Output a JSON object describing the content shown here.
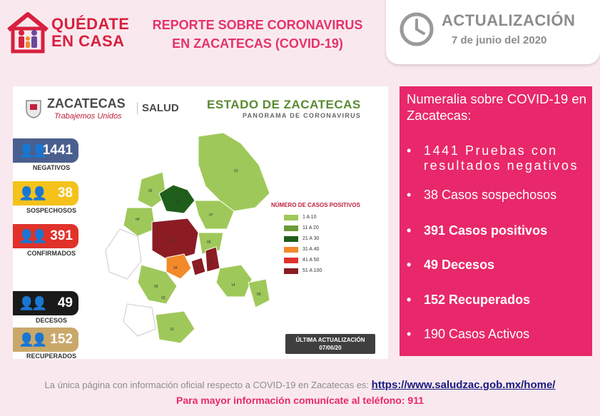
{
  "header": {
    "brand_line1": "QUÉDATE",
    "brand_line2": "EN CASA",
    "report_line1": "REPORTE SOBRE CORONAVIRUS",
    "report_line2": "EN ZACATECAS  (COVID-19)",
    "update_title": "ACTUALIZACIÓN",
    "update_date": "7 de junio del 2020"
  },
  "infographic": {
    "logo_name": "ZACATECAS",
    "logo_tagline": "Trabajemos Unidos",
    "logo_salud": "SALUD",
    "title": "ESTADO DE ZACATECAS",
    "subtitle": "PANORAMA DE CORONAVIRUS",
    "stats": [
      {
        "value": "1441",
        "label": "NEGATIVOS",
        "color": "#4a5f8e"
      },
      {
        "value": "38",
        "label": "SOSPECHOSOS",
        "color": "#f4c21b"
      },
      {
        "value": "391",
        "label": "CONFIRMADOS",
        "color": "#e0322b"
      },
      {
        "value": "49",
        "label": "DECESOS",
        "color": "#1a1a1a"
      },
      {
        "value": "152",
        "label": "RECUPERADOS",
        "color": "#c9a86a"
      }
    ],
    "legend_title": "NÚMERO DE CASOS POSITIVOS",
    "legend": [
      {
        "label": "1 A 10",
        "color": "#9fc85a"
      },
      {
        "label": "11 A 20",
        "color": "#6b9a3a"
      },
      {
        "label": "21 A 30",
        "color": "#1f5e1a"
      },
      {
        "label": "31 A 40",
        "color": "#f28a2a"
      },
      {
        "label": "41 A 50",
        "color": "#e0322b"
      },
      {
        "label": "51 A 100",
        "color": "#8b1c24"
      }
    ],
    "last_update_label": "ÚLTIMA ACTUALIZACIÓN",
    "last_update_date": "07/06/20",
    "map_labels": {
      "m01": "01",
      "m02": "02",
      "m04": "04",
      "m05": "05",
      "m07": "07",
      "m27": "27",
      "m81": "81",
      "m34": "34",
      "m77": "77",
      "m57": "57",
      "m06": "06",
      "m03": "03",
      "m14": "14",
      "m09": "09",
      "m10": "10"
    }
  },
  "numeralia": {
    "title": "Numeralia sobre COVID-19 en Zacatecas:",
    "items": [
      "1441 Pruebas con resultados negativos",
      " 38 Casos sospechosos",
      "391 Casos positivos",
      "49 Decesos",
      "152 Recuperados",
      "190 Casos Activos"
    ]
  },
  "footer": {
    "info_text": "La única página con información oficial respecto a COVID-19 en Zacatecas es: ",
    "link": "https://www.saludzac.gob.mx/home/",
    "phone_text": "Para mayor información comunícate al teléfono: 911"
  },
  "colors": {
    "accent_pink": "#e8286a",
    "brand_red": "#d8203f",
    "map_green": "#9fc85a"
  }
}
